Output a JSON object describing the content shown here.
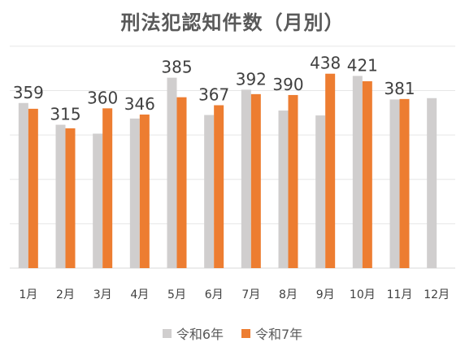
{
  "chart_data": {
    "type": "bar",
    "title": "刑法犯認知件数（月別）",
    "categories": [
      "1月",
      "2月",
      "3月",
      "4月",
      "5月",
      "6月",
      "7月",
      "8月",
      "9月",
      "10月",
      "11月",
      "12月"
    ],
    "series": [
      {
        "name": "令和6年",
        "color": "#d0cece",
        "values": [
          372,
          323,
          303,
          337,
          429,
          345,
          402,
          355,
          344,
          433,
          380,
          383
        ]
      },
      {
        "name": "令和7年",
        "color": "#ed7d31",
        "values": [
          359,
          315,
          360,
          346,
          385,
          367,
          392,
          390,
          438,
          421,
          381,
          null
        ]
      }
    ],
    "data_labels": [
      "359",
      "315",
      "360",
      "346",
      "385",
      "367",
      "392",
      "390",
      "438",
      "421",
      "381",
      ""
    ],
    "ylim": [
      0,
      540
    ],
    "grid": true,
    "legend_position": "bottom"
  }
}
